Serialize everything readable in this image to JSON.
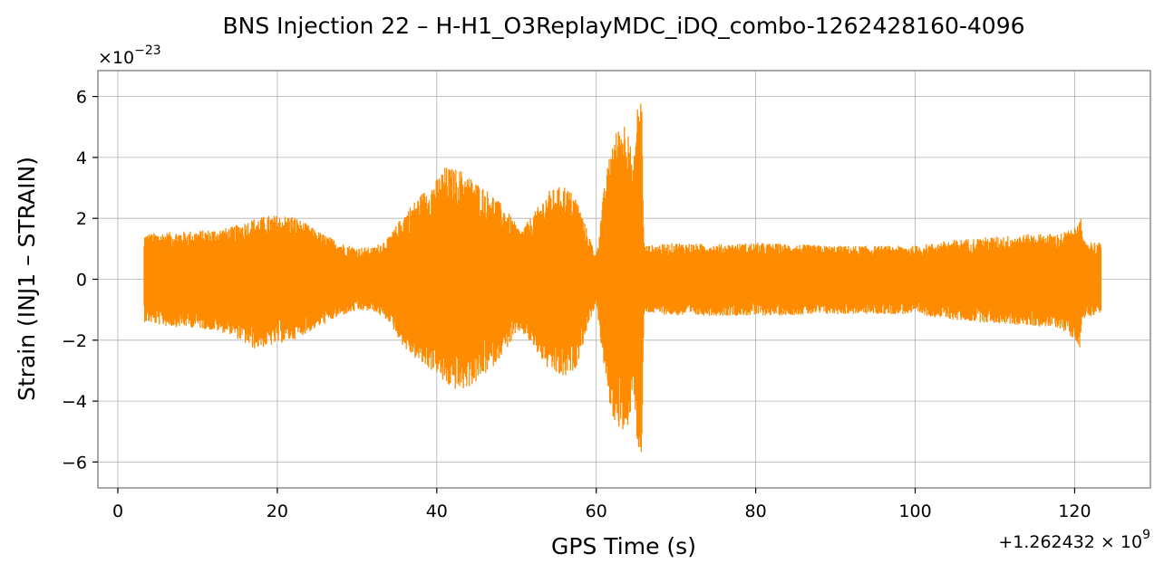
{
  "chart_data": {
    "type": "line",
    "title": "BNS Injection 22 – H-H1_O3ReplayMDC_iDQ_combo-1262428160-4096",
    "xlabel": "GPS Time (s)",
    "ylabel": "Strain (INJ1 – STRAIN)",
    "x_offset_label": "+1.262432 × 10^9",
    "y_scale_label": "×10^-23",
    "xlim": [
      -2.5,
      129.5
    ],
    "ylim": [
      -6.85,
      6.85
    ],
    "xticks": [
      0,
      20,
      40,
      60,
      80,
      100,
      120
    ],
    "yticks": [
      -6,
      -4,
      -2,
      0,
      2,
      4,
      6
    ],
    "xtick_labels": [
      "0",
      "20",
      "40",
      "60",
      "80",
      "100",
      "120"
    ],
    "ytick_labels": [
      "−6",
      "−4",
      "−2",
      "0",
      "2",
      "4",
      "6"
    ],
    "grid": true,
    "line_color": "#ff8c00",
    "series": [
      {
        "x_start": 3.3,
        "x_end": 123.3,
        "envelope_upper": [
          [
            3.3,
            1.5
          ],
          [
            6,
            1.55
          ],
          [
            10,
            1.6
          ],
          [
            14,
            1.7
          ],
          [
            17,
            2.0
          ],
          [
            19,
            2.1
          ],
          [
            22,
            2.1
          ],
          [
            25,
            1.6
          ],
          [
            28,
            1.2
          ],
          [
            30,
            1.05
          ],
          [
            32,
            1.05
          ],
          [
            34,
            1.4
          ],
          [
            36,
            2.2
          ],
          [
            38,
            2.8
          ],
          [
            40,
            3.3
          ],
          [
            41,
            3.7
          ],
          [
            43,
            3.6
          ],
          [
            45,
            3.2
          ],
          [
            47,
            2.8
          ],
          [
            49,
            2.2
          ],
          [
            50.5,
            1.6
          ],
          [
            52,
            2.1
          ],
          [
            54,
            2.9
          ],
          [
            56,
            3.1
          ],
          [
            57.5,
            2.7
          ],
          [
            59,
            1.5
          ],
          [
            60,
            0.8
          ],
          [
            61,
            3.0
          ],
          [
            62,
            4.6
          ],
          [
            63,
            5.1
          ],
          [
            64,
            5.3
          ],
          [
            64.6,
            3.5
          ],
          [
            65.2,
            5.8
          ],
          [
            65.7,
            6.1
          ],
          [
            66.0,
            1.1
          ],
          [
            70,
            1.2
          ],
          [
            75,
            1.15
          ],
          [
            80,
            1.2
          ],
          [
            90,
            1.1
          ],
          [
            100,
            1.1
          ],
          [
            105,
            1.3
          ],
          [
            110,
            1.4
          ],
          [
            115,
            1.5
          ],
          [
            118,
            1.5
          ],
          [
            120.2,
            1.7
          ],
          [
            120.6,
            2.6
          ],
          [
            121,
            1.3
          ],
          [
            123.3,
            1.2
          ]
        ],
        "envelope_lower": [
          [
            3.3,
            -1.4
          ],
          [
            6,
            -1.55
          ],
          [
            10,
            -1.6
          ],
          [
            14,
            -1.8
          ],
          [
            17,
            -2.3
          ],
          [
            19,
            -2.2
          ],
          [
            22,
            -2.0
          ],
          [
            25,
            -1.6
          ],
          [
            28,
            -1.2
          ],
          [
            30,
            -1.05
          ],
          [
            32,
            -1.05
          ],
          [
            34,
            -1.4
          ],
          [
            36,
            -2.3
          ],
          [
            38,
            -2.8
          ],
          [
            40,
            -3.1
          ],
          [
            41,
            -3.5
          ],
          [
            43,
            -3.7
          ],
          [
            45,
            -3.4
          ],
          [
            47,
            -2.9
          ],
          [
            49,
            -2.2
          ],
          [
            50.5,
            -1.7
          ],
          [
            52,
            -2.2
          ],
          [
            54,
            -3.0
          ],
          [
            56,
            -3.3
          ],
          [
            57.5,
            -2.9
          ],
          [
            59,
            -1.5
          ],
          [
            60,
            -0.8
          ],
          [
            61,
            -3.0
          ],
          [
            62,
            -4.6
          ],
          [
            63,
            -4.9
          ],
          [
            64,
            -5.4
          ],
          [
            64.6,
            -3.3
          ],
          [
            65.2,
            -5.6
          ],
          [
            65.7,
            -6.1
          ],
          [
            66.0,
            -1.1
          ],
          [
            70,
            -1.2
          ],
          [
            75,
            -1.2
          ],
          [
            80,
            -1.2
          ],
          [
            90,
            -1.15
          ],
          [
            100,
            -1.15
          ],
          [
            105,
            -1.35
          ],
          [
            110,
            -1.45
          ],
          [
            115,
            -1.55
          ],
          [
            118,
            -1.6
          ],
          [
            120.2,
            -2.0
          ],
          [
            120.6,
            -2.5
          ],
          [
            121,
            -1.3
          ],
          [
            123.3,
            -1.1
          ]
        ]
      }
    ]
  }
}
